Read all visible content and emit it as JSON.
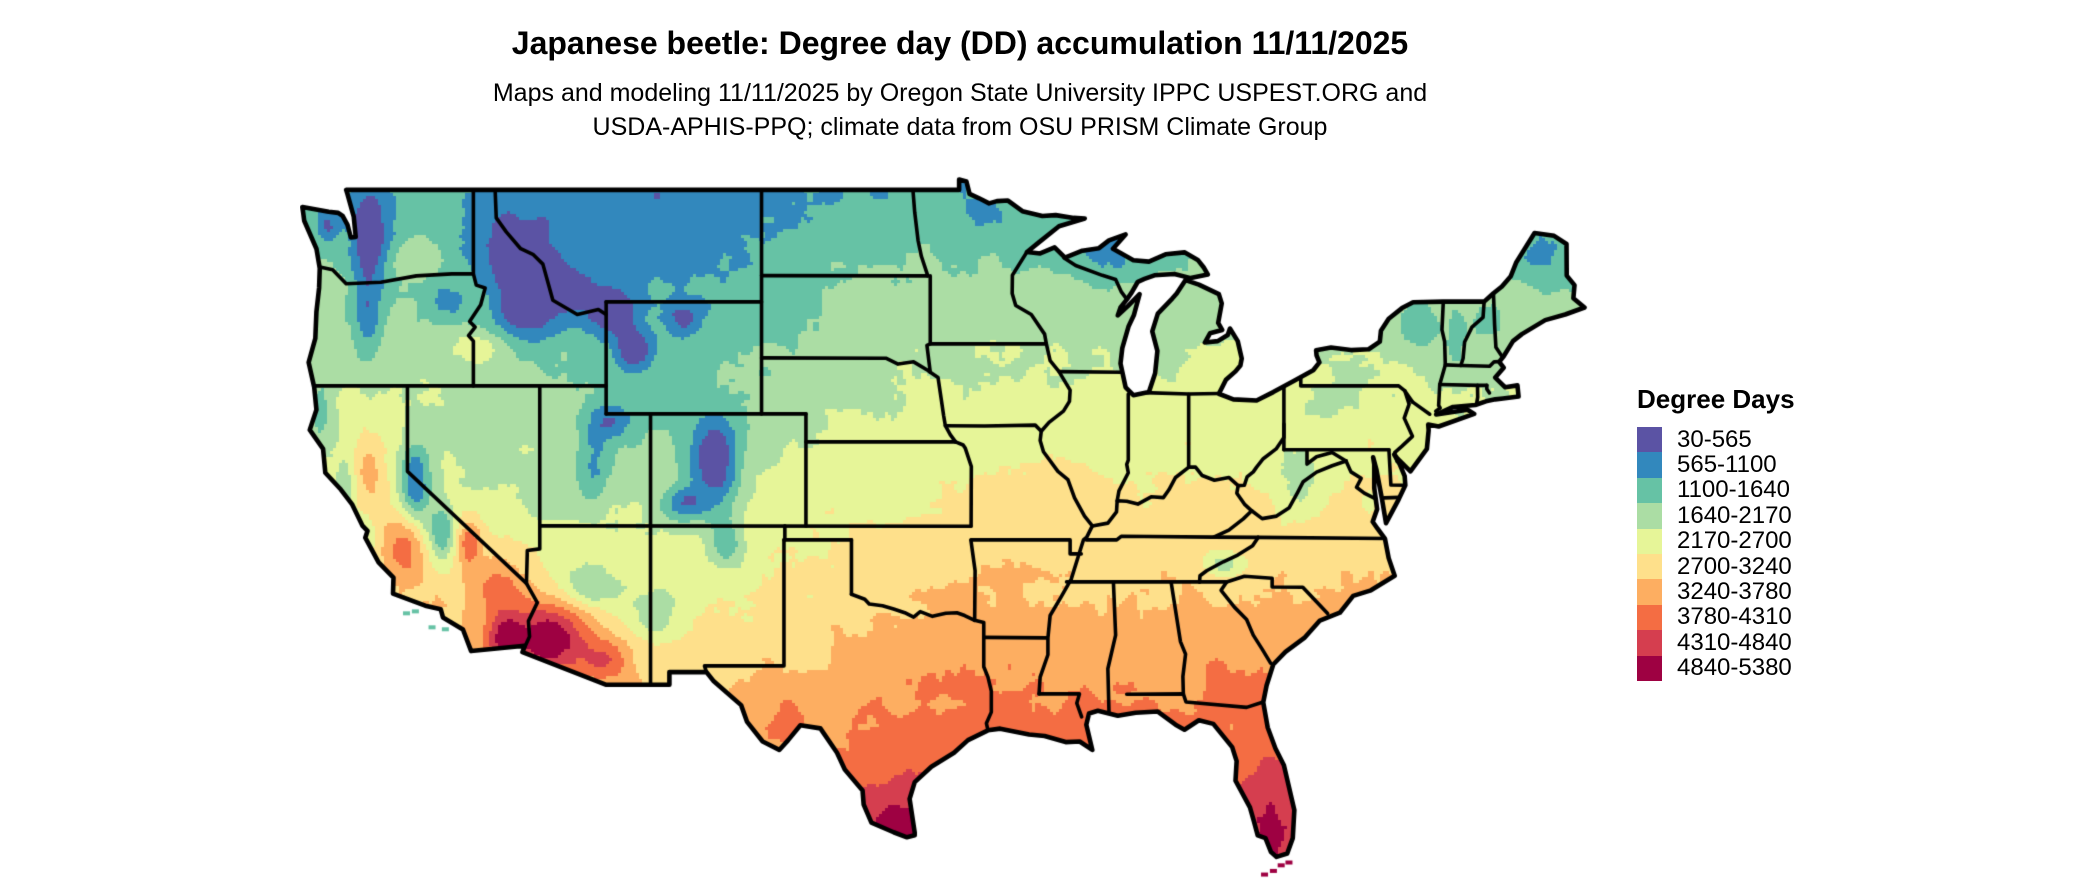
{
  "header": {
    "title": "Japanese beetle: Degree day (DD) accumulation 11/11/2025",
    "subtitle_line1": "Maps and modeling 11/11/2025 by Oregon State University IPPC USPEST.ORG and",
    "subtitle_line2": "USDA-APHIS-PPQ; climate data from OSU PRISM Climate Group"
  },
  "legend": {
    "title": "Degree Days",
    "bin_edges": [
      30,
      565,
      1100,
      1640,
      2170,
      2700,
      3240,
      3780,
      4310,
      4840,
      5380
    ],
    "entries": [
      {
        "label": "30-565",
        "color": "#5b53a4"
      },
      {
        "label": "565-1100",
        "color": "#3288bd"
      },
      {
        "label": "1100-1640",
        "color": "#66c2a5"
      },
      {
        "label": "1640-2170",
        "color": "#abdda4"
      },
      {
        "label": "2170-2700",
        "color": "#e6f598"
      },
      {
        "label": "2700-3240",
        "color": "#fee08b"
      },
      {
        "label": "3240-3780",
        "color": "#fdae61"
      },
      {
        "label": "3780-4310",
        "color": "#f46d43"
      },
      {
        "label": "4310-4840",
        "color": "#d53e4f"
      },
      {
        "label": "4840-5380",
        "color": "#9e0142"
      }
    ]
  }
}
